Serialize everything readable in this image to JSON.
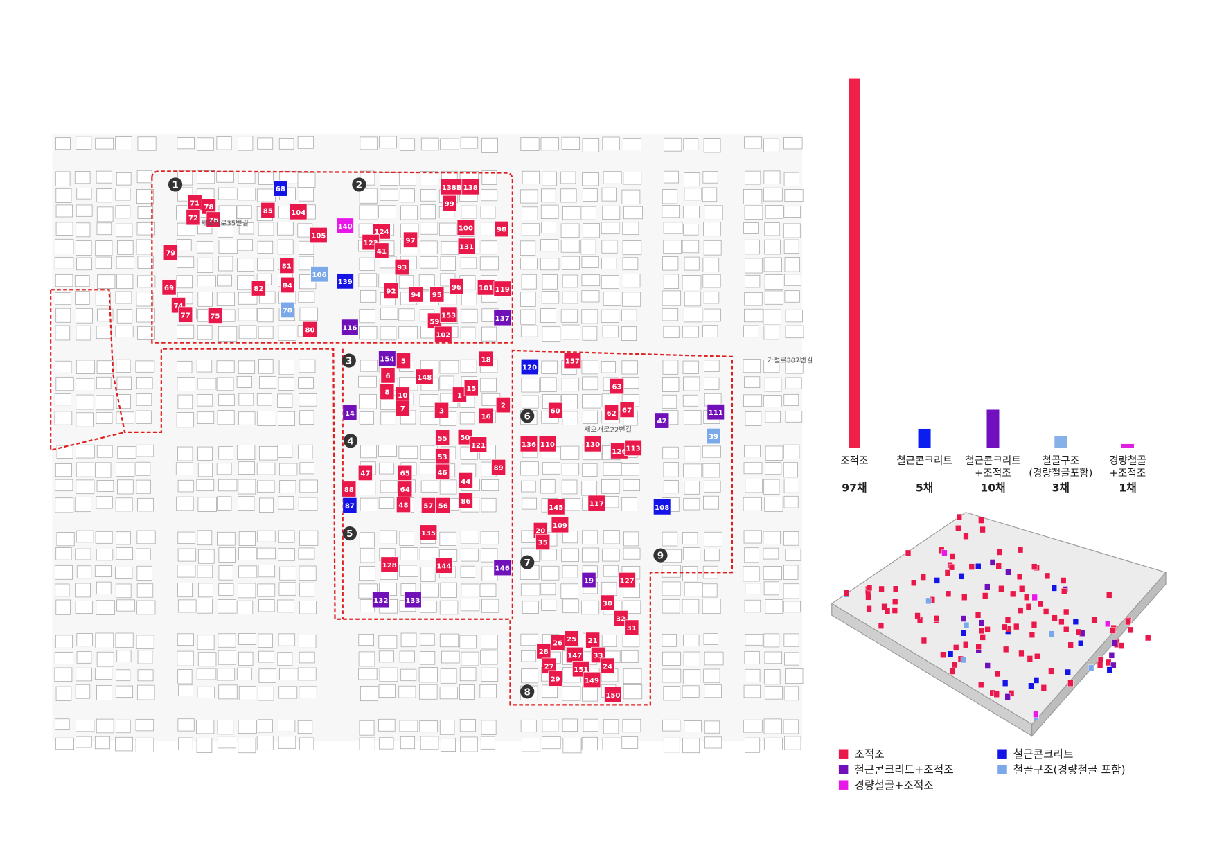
{
  "map": {
    "zones": [
      "1",
      "2",
      "3",
      "4",
      "5",
      "6",
      "7",
      "8",
      "9"
    ],
    "streets": [
      "새오개로35번길",
      "새오개로22번길",
      "가정로307번길"
    ],
    "buildings": [
      {
        "label": "68",
        "kind": "rc"
      },
      {
        "label": "71",
        "kind": "m"
      },
      {
        "label": "78",
        "kind": "m"
      },
      {
        "label": "72",
        "kind": "m"
      },
      {
        "label": "76",
        "kind": "m"
      },
      {
        "label": "85",
        "kind": "m"
      },
      {
        "label": "104",
        "kind": "m"
      },
      {
        "label": "105",
        "kind": "m"
      },
      {
        "label": "79",
        "kind": "m"
      },
      {
        "label": "81",
        "kind": "m"
      },
      {
        "label": "106",
        "kind": "s"
      },
      {
        "label": "69",
        "kind": "m"
      },
      {
        "label": "82",
        "kind": "m"
      },
      {
        "label": "84",
        "kind": "m"
      },
      {
        "label": "74",
        "kind": "m"
      },
      {
        "label": "77",
        "kind": "m"
      },
      {
        "label": "75",
        "kind": "m"
      },
      {
        "label": "70",
        "kind": "s"
      },
      {
        "label": "80",
        "kind": "m"
      },
      {
        "label": "138B",
        "kind": "m"
      },
      {
        "label": "138",
        "kind": "m"
      },
      {
        "label": "99",
        "kind": "m"
      },
      {
        "label": "140",
        "kind": "lsm"
      },
      {
        "label": "124",
        "kind": "m"
      },
      {
        "label": "123",
        "kind": "m"
      },
      {
        "label": "100",
        "kind": "m"
      },
      {
        "label": "98",
        "kind": "m"
      },
      {
        "label": "97",
        "kind": "m"
      },
      {
        "label": "41",
        "kind": "m"
      },
      {
        "label": "131",
        "kind": "m"
      },
      {
        "label": "93",
        "kind": "m"
      },
      {
        "label": "139",
        "kind": "rc"
      },
      {
        "label": "92",
        "kind": "m"
      },
      {
        "label": "94",
        "kind": "m"
      },
      {
        "label": "95",
        "kind": "m"
      },
      {
        "label": "96",
        "kind": "m"
      },
      {
        "label": "101",
        "kind": "m"
      },
      {
        "label": "119",
        "kind": "m"
      },
      {
        "label": "116",
        "kind": "rcm"
      },
      {
        "label": "59",
        "kind": "m"
      },
      {
        "label": "153",
        "kind": "m"
      },
      {
        "label": "137",
        "kind": "rcm"
      },
      {
        "label": "102",
        "kind": "m"
      },
      {
        "label": "154",
        "kind": "rcm"
      },
      {
        "label": "5",
        "kind": "m"
      },
      {
        "label": "18",
        "kind": "m"
      },
      {
        "label": "6",
        "kind": "m"
      },
      {
        "label": "148",
        "kind": "m"
      },
      {
        "label": "8",
        "kind": "m"
      },
      {
        "label": "10",
        "kind": "m"
      },
      {
        "label": "1",
        "kind": "m"
      },
      {
        "label": "15",
        "kind": "m"
      },
      {
        "label": "7",
        "kind": "m"
      },
      {
        "label": "3",
        "kind": "m"
      },
      {
        "label": "16",
        "kind": "m"
      },
      {
        "label": "2",
        "kind": "m"
      },
      {
        "label": "14",
        "kind": "rcm"
      },
      {
        "label": "55",
        "kind": "m"
      },
      {
        "label": "50",
        "kind": "m"
      },
      {
        "label": "121",
        "kind": "m"
      },
      {
        "label": "53",
        "kind": "m"
      },
      {
        "label": "89",
        "kind": "m"
      },
      {
        "label": "47",
        "kind": "m"
      },
      {
        "label": "65",
        "kind": "m"
      },
      {
        "label": "46",
        "kind": "m"
      },
      {
        "label": "44",
        "kind": "m"
      },
      {
        "label": "88",
        "kind": "m"
      },
      {
        "label": "64",
        "kind": "m"
      },
      {
        "label": "87",
        "kind": "rc"
      },
      {
        "label": "48",
        "kind": "m"
      },
      {
        "label": "57",
        "kind": "m"
      },
      {
        "label": "56",
        "kind": "m"
      },
      {
        "label": "86",
        "kind": "m"
      },
      {
        "label": "135",
        "kind": "m"
      },
      {
        "label": "128",
        "kind": "m"
      },
      {
        "label": "144",
        "kind": "m"
      },
      {
        "label": "146",
        "kind": "rcm"
      },
      {
        "label": "132",
        "kind": "rcm"
      },
      {
        "label": "133",
        "kind": "rcm"
      },
      {
        "label": "120",
        "kind": "rc"
      },
      {
        "label": "157",
        "kind": "m"
      },
      {
        "label": "63",
        "kind": "m"
      },
      {
        "label": "60",
        "kind": "m"
      },
      {
        "label": "62",
        "kind": "m"
      },
      {
        "label": "67",
        "kind": "m"
      },
      {
        "label": "42",
        "kind": "rcm"
      },
      {
        "label": "111",
        "kind": "rcm"
      },
      {
        "label": "39",
        "kind": "s"
      },
      {
        "label": "136",
        "kind": "m"
      },
      {
        "label": "110",
        "kind": "m"
      },
      {
        "label": "130",
        "kind": "m"
      },
      {
        "label": "126",
        "kind": "m"
      },
      {
        "label": "113",
        "kind": "m"
      },
      {
        "label": "145",
        "kind": "m"
      },
      {
        "label": "117",
        "kind": "m"
      },
      {
        "label": "108",
        "kind": "rc"
      },
      {
        "label": "109",
        "kind": "m"
      },
      {
        "label": "20",
        "kind": "m"
      },
      {
        "label": "35",
        "kind": "m"
      },
      {
        "label": "19",
        "kind": "rcm"
      },
      {
        "label": "127",
        "kind": "m"
      },
      {
        "label": "30",
        "kind": "m"
      },
      {
        "label": "32",
        "kind": "m"
      },
      {
        "label": "31",
        "kind": "m"
      },
      {
        "label": "25",
        "kind": "m"
      },
      {
        "label": "26",
        "kind": "m"
      },
      {
        "label": "21",
        "kind": "m"
      },
      {
        "label": "28",
        "kind": "m"
      },
      {
        "label": "147",
        "kind": "m"
      },
      {
        "label": "33",
        "kind": "m"
      },
      {
        "label": "27",
        "kind": "m"
      },
      {
        "label": "24",
        "kind": "m"
      },
      {
        "label": "151",
        "kind": "m"
      },
      {
        "label": "29",
        "kind": "m"
      },
      {
        "label": "149",
        "kind": "m"
      },
      {
        "label": "150",
        "kind": "m"
      }
    ]
  },
  "kinds": {
    "m": "#e8194a",
    "rc": "#1414e6",
    "rcm": "#7010b8",
    "s": "#7aa8e8",
    "lsm": "#e818e8"
  },
  "chart_data": {
    "type": "bar",
    "categories": [
      "조적조",
      "철근콘크리트",
      "철근콘크리트\n+조적조",
      "철골구조\n(경량철골포함)",
      "경량철골\n+조적조"
    ],
    "values": [
      97,
      5,
      10,
      3,
      1
    ],
    "value_labels": [
      "97채",
      "5채",
      "10채",
      "3채",
      "1채"
    ],
    "colors": [
      "#f0204a",
      "#0a1ef0",
      "#7210c0",
      "#86b0e8",
      "#e020e0"
    ]
  },
  "legend": [
    {
      "label": "조적조",
      "kind": "m"
    },
    {
      "label": "철근콘크리트",
      "kind": "rc"
    },
    {
      "label": "철근콘크리트+조적조",
      "kind": "rcm"
    },
    {
      "label": "철골구조(경량철골 포함)",
      "kind": "s"
    },
    {
      "label": "경량철골+조적조",
      "kind": "lsm"
    }
  ]
}
